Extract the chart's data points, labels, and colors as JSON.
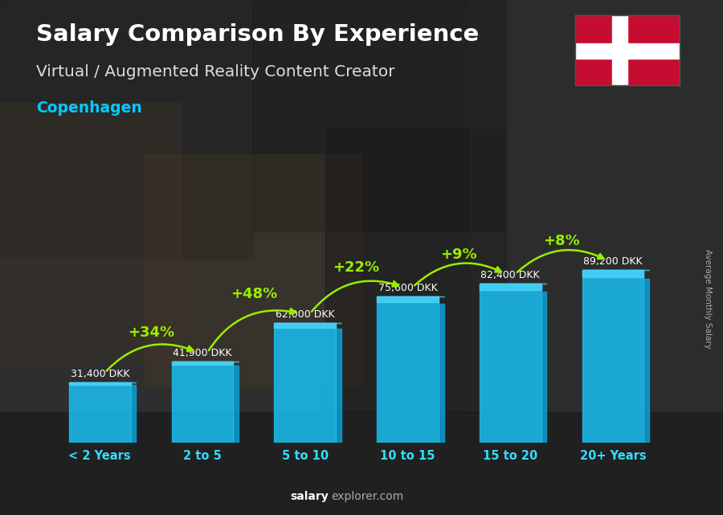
{
  "title_line1": "Salary Comparison By Experience",
  "title_line2": "Virtual / Augmented Reality Content Creator",
  "city": "Copenhagen",
  "ylabel": "Average Monthly Salary",
  "watermark_bold": "salary",
  "watermark_normal": "explorer.com",
  "categories": [
    "< 2 Years",
    "2 to 5",
    "5 to 10",
    "10 to 15",
    "15 to 20",
    "20+ Years"
  ],
  "values": [
    31400,
    41900,
    62000,
    75600,
    82400,
    89200
  ],
  "value_labels": [
    "31,400 DKK",
    "41,900 DKK",
    "62,000 DKK",
    "75,600 DKK",
    "82,400 DKK",
    "89,200 DKK"
  ],
  "pct_labels": [
    "+34%",
    "+48%",
    "+22%",
    "+9%",
    "+8%"
  ],
  "bar_color_main": "#1ab8e8",
  "bar_color_light": "#4dd4f8",
  "bar_color_dark": "#0a7aaa",
  "bar_color_right": "#0d9fd4",
  "bg_dark": "#2a2a2a",
  "bg_mid": "#444444",
  "title_color": "#ffffff",
  "subtitle_color": "#dddddd",
  "city_color": "#00ccff",
  "value_label_color": "#ffffff",
  "pct_color": "#99ee00",
  "arrow_color": "#99ee00",
  "xtick_color": "#33ddff",
  "ylabel_color": "#aaaaaa",
  "watermark_color": "#aaaaaa"
}
